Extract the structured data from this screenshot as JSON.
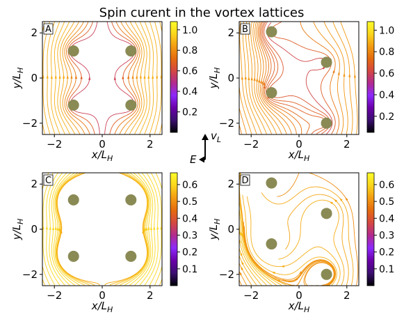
{
  "figure": {
    "title": "Spin curent in the vortex lattices",
    "colormap": [
      "#000004",
      "#3b0f70",
      "#6a00a8",
      "#8c29fb",
      "#b12a90",
      "#d44842",
      "#e56b0f",
      "#f39c12",
      "#fbd61c",
      "#fcfd2a"
    ],
    "vortex_color": "#8a8a55"
  },
  "chart_data": [
    {
      "type": "streamplot",
      "panel_label": "A",
      "xlabel": "x/L",
      "xlabel_sub": "H",
      "ylabel": "y/L",
      "ylabel_sub": "H",
      "xlim": [
        -2.5,
        2.5
      ],
      "ylim": [
        -2.5,
        2.5
      ],
      "xticks": [
        -2,
        0,
        2
      ],
      "yticks": [
        -2,
        0,
        2
      ],
      "xtick_labels": [
        "−2",
        "0",
        "2"
      ],
      "ytick_labels": [
        "−2",
        "0",
        "2"
      ],
      "vortices": [
        {
          "x": -1.2,
          "y": 1.2
        },
        {
          "x": 1.2,
          "y": 1.2
        },
        {
          "x": -1.2,
          "y": -1.2
        },
        {
          "x": 1.2,
          "y": -1.2
        }
      ],
      "colorbar": {
        "min": 0.0,
        "max": 1.08,
        "ticks": [
          0.2,
          0.4,
          0.6,
          0.8,
          1.0
        ],
        "tick_labels": [
          "0.2",
          "0.4",
          "0.6",
          "0.8",
          "1.0"
        ]
      }
    },
    {
      "type": "streamplot",
      "panel_label": "B",
      "xlabel": "x/L",
      "xlabel_sub": "H",
      "ylabel": "y/L",
      "ylabel_sub": "H",
      "xlim": [
        -2.5,
        2.5
      ],
      "ylim": [
        -2.5,
        2.5
      ],
      "xticks": [
        -2,
        0,
        2
      ],
      "yticks": [
        -2,
        0,
        2
      ],
      "xtick_labels": [
        "−2",
        "0",
        "2"
      ],
      "ytick_labels": [
        "−2",
        "0",
        "2"
      ],
      "vortices": [
        {
          "x": -1.15,
          "y": 2.05
        },
        {
          "x": 1.15,
          "y": 0.7
        },
        {
          "x": -1.15,
          "y": -0.65
        },
        {
          "x": 1.15,
          "y": -2.0
        }
      ],
      "colorbar": {
        "min": 0.05,
        "max": 1.08,
        "ticks": [
          0.2,
          0.4,
          0.6,
          0.8,
          1.0
        ],
        "tick_labels": [
          "0.2",
          "0.4",
          "0.6",
          "0.8",
          "1.0"
        ]
      }
    },
    {
      "type": "streamplot",
      "panel_label": "C",
      "xlabel": "x/L",
      "xlabel_sub": "H",
      "ylabel": "y/L",
      "ylabel_sub": "H",
      "xlim": [
        -2.5,
        2.5
      ],
      "ylim": [
        -2.5,
        2.5
      ],
      "xticks": [
        -2,
        0,
        2
      ],
      "yticks": [
        -2,
        0,
        2
      ],
      "xtick_labels": [
        "−2",
        "0",
        "2"
      ],
      "ytick_labels": [
        "−2",
        "0",
        "2"
      ],
      "vortices": [
        {
          "x": -1.2,
          "y": 1.3
        },
        {
          "x": 1.2,
          "y": 1.3
        },
        {
          "x": -1.2,
          "y": -1.2
        },
        {
          "x": 1.2,
          "y": -1.2
        }
      ],
      "colorbar": {
        "min": 0.0,
        "max": 0.67,
        "ticks": [
          0.1,
          0.2,
          0.3,
          0.4,
          0.5,
          0.6
        ],
        "tick_labels": [
          "0.1",
          "0.2",
          "0.3",
          "0.4",
          "0.5",
          "0.6"
        ]
      }
    },
    {
      "type": "streamplot",
      "panel_label": "D",
      "xlabel": "x/L",
      "xlabel_sub": "H",
      "ylabel": "y/L",
      "ylabel_sub": "H",
      "xlim": [
        -2.5,
        2.5
      ],
      "ylim": [
        -2.5,
        2.5
      ],
      "xticks": [
        -2,
        0,
        2
      ],
      "yticks": [
        -2,
        0,
        2
      ],
      "xtick_labels": [
        "−2",
        "0",
        "2"
      ],
      "ytick_labels": [
        "−2",
        "0",
        "2"
      ],
      "vortices": [
        {
          "x": -1.15,
          "y": 2.05
        },
        {
          "x": 1.15,
          "y": 0.7
        },
        {
          "x": -1.15,
          "y": -0.65
        },
        {
          "x": 1.15,
          "y": -2.0
        }
      ],
      "colorbar": {
        "min": 0.0,
        "max": 0.67,
        "ticks": [
          0.1,
          0.2,
          0.3,
          0.4,
          0.5,
          0.6
        ],
        "tick_labels": [
          "0.1",
          "0.2",
          "0.3",
          "0.4",
          "0.5",
          "0.6"
        ]
      }
    }
  ],
  "legend_arrows": {
    "vertical_label": "v",
    "vertical_sub": "L",
    "horizontal_label": "E"
  }
}
